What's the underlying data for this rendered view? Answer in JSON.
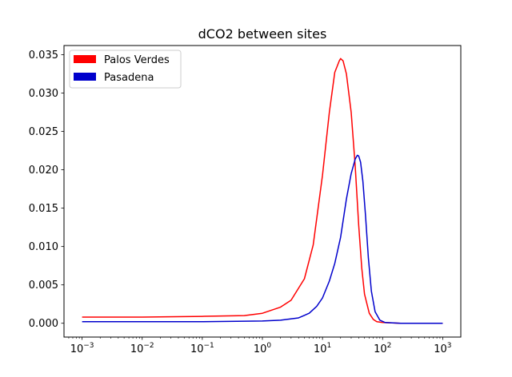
{
  "chart_data": {
    "type": "line",
    "title": "dCO2 between sites",
    "xlabel": "",
    "ylabel": "",
    "xscale": "log",
    "xlim": [
      0.0005,
      2000
    ],
    "ylim": [
      -0.0018,
      0.0362
    ],
    "grid": false,
    "legend_position": "top-left",
    "x_ticks": [
      {
        "value": 0.001,
        "base": "10",
        "exp": "−3"
      },
      {
        "value": 0.01,
        "base": "10",
        "exp": "−2"
      },
      {
        "value": 0.1,
        "base": "10",
        "exp": "−1"
      },
      {
        "value": 1,
        "base": "10",
        "exp": "0"
      },
      {
        "value": 10,
        "base": "10",
        "exp": "1"
      },
      {
        "value": 100,
        "base": "10",
        "exp": "2"
      },
      {
        "value": 1000,
        "base": "10",
        "exp": "3"
      }
    ],
    "y_ticks": [
      {
        "value": 0.0,
        "label": "0.000"
      },
      {
        "value": 0.005,
        "label": "0.005"
      },
      {
        "value": 0.01,
        "label": "0.010"
      },
      {
        "value": 0.015,
        "label": "0.015"
      },
      {
        "value": 0.02,
        "label": "0.020"
      },
      {
        "value": 0.025,
        "label": "0.025"
      },
      {
        "value": 0.03,
        "label": "0.030"
      },
      {
        "value": 0.035,
        "label": "0.035"
      }
    ],
    "series": [
      {
        "name": "Palos Verdes",
        "color": "#ff0000",
        "x": [
          0.001,
          0.01,
          0.1,
          0.5,
          1,
          2,
          3,
          5,
          7,
          10,
          13,
          16,
          19,
          20,
          22,
          25,
          30,
          35,
          40,
          45,
          50,
          60,
          70,
          80,
          100,
          200,
          1000
        ],
        "y": [
          0.0008,
          0.0008,
          0.0009,
          0.001,
          0.0013,
          0.0021,
          0.003,
          0.0058,
          0.0102,
          0.0193,
          0.0275,
          0.0327,
          0.0342,
          0.0345,
          0.0342,
          0.0325,
          0.0275,
          0.0205,
          0.0128,
          0.0072,
          0.0038,
          0.0013,
          0.0005,
          0.0002,
          0.0001,
          0.0,
          0.0
        ]
      },
      {
        "name": "Pasadena",
        "color": "#0000cc",
        "x": [
          0.001,
          0.01,
          0.1,
          1,
          2,
          4,
          6,
          8,
          10,
          13,
          16,
          20,
          25,
          30,
          35,
          38,
          40,
          43,
          47,
          52,
          58,
          65,
          75,
          90,
          110,
          200,
          1000
        ],
        "y": [
          0.0002,
          0.0002,
          0.0002,
          0.0003,
          0.0004,
          0.0007,
          0.0013,
          0.0022,
          0.0033,
          0.0055,
          0.0078,
          0.0112,
          0.0162,
          0.0195,
          0.0214,
          0.0219,
          0.0218,
          0.021,
          0.0185,
          0.014,
          0.0085,
          0.0042,
          0.0015,
          0.0004,
          0.0001,
          0.0,
          0.0
        ]
      }
    ]
  }
}
